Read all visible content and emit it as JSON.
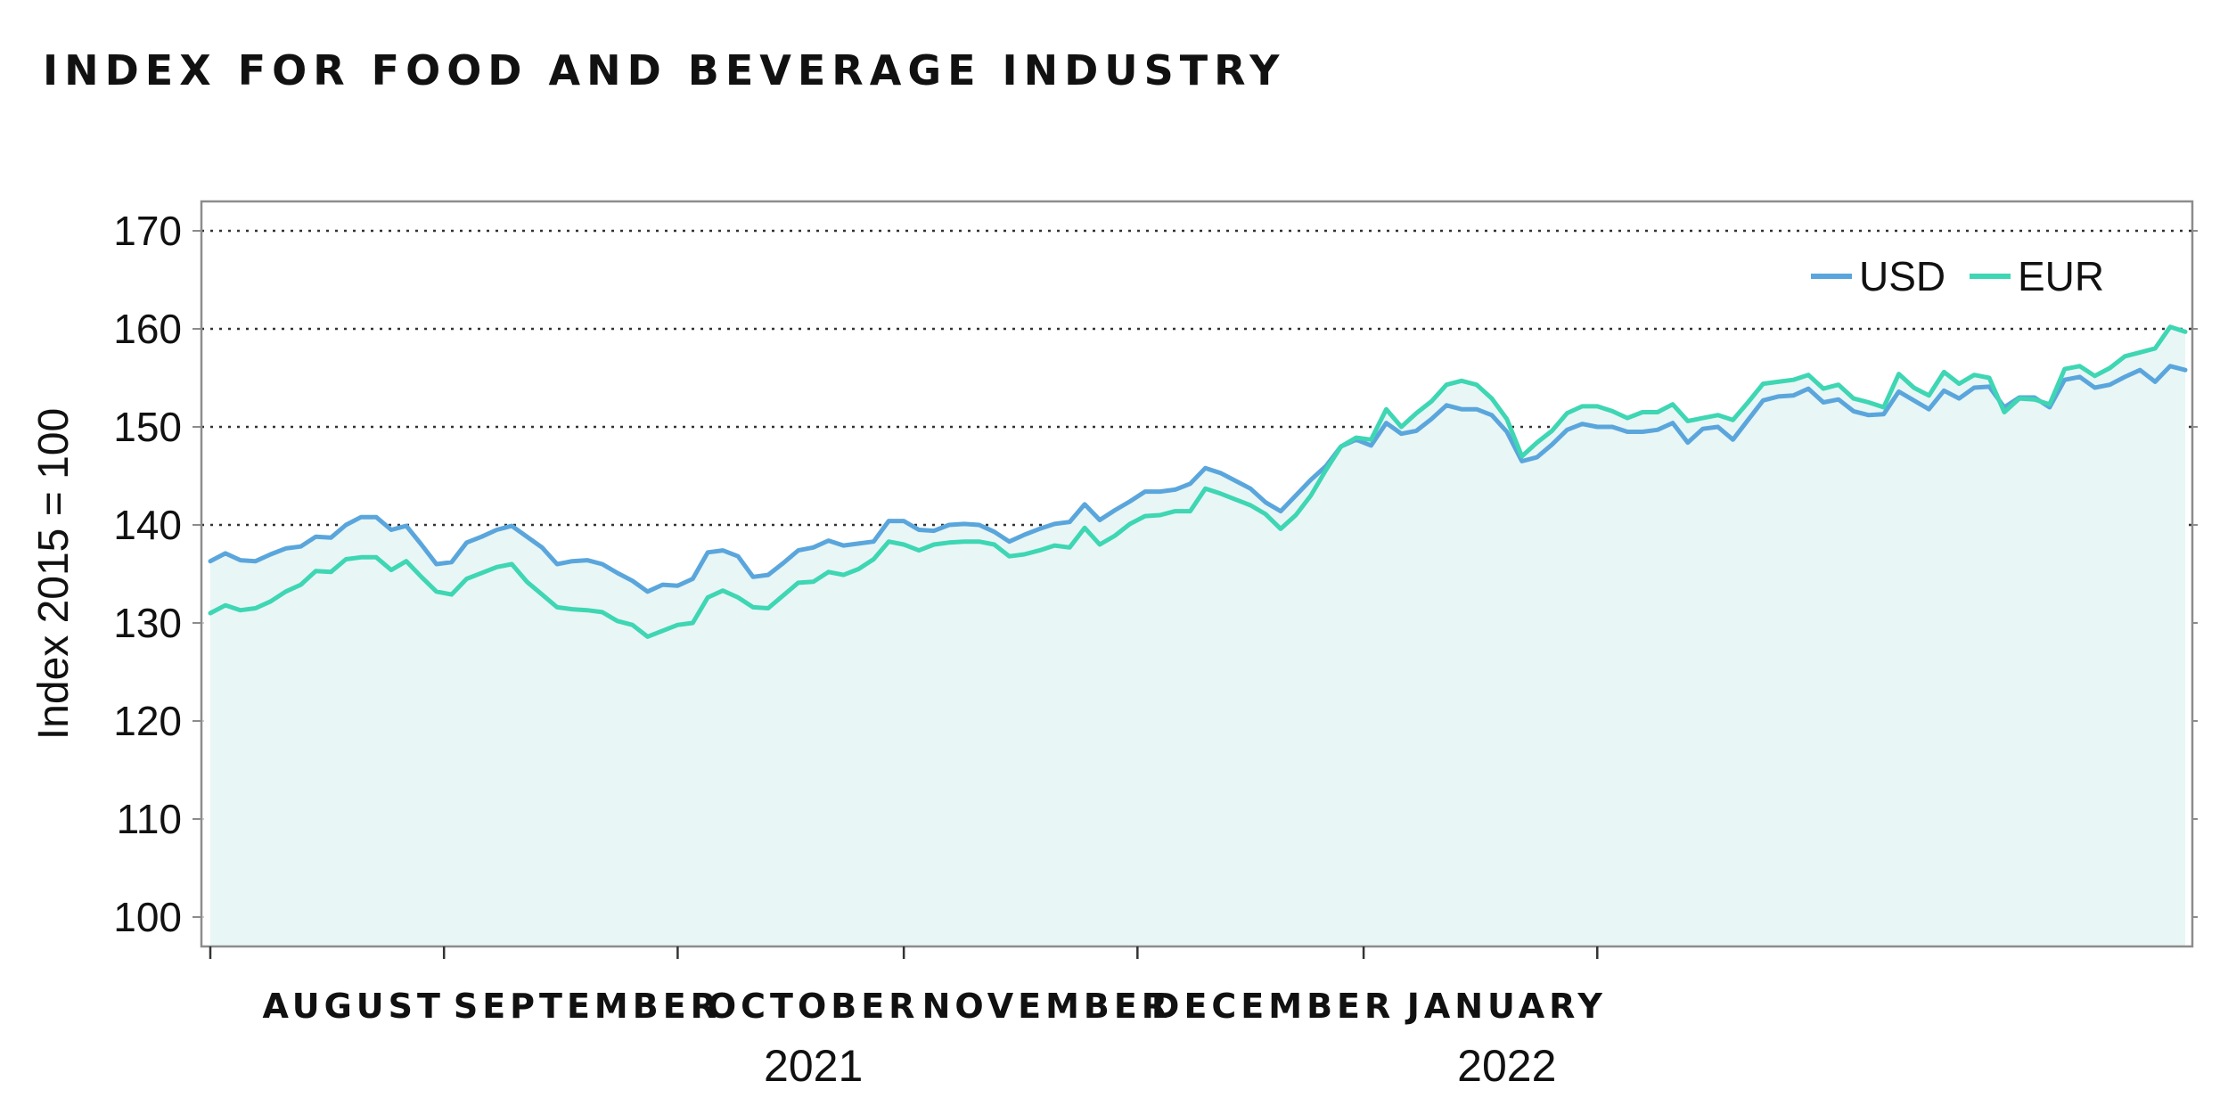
{
  "title": "INDEX FOR FOOD AND BEVERAGE INDUSTRY",
  "chart_data": {
    "type": "line",
    "title": "INDEX FOR FOOD AND BEVERAGE INDUSTRY",
    "xlabel": "",
    "ylabel": "Index 2015 = 100",
    "ylim": [
      97,
      173
    ],
    "yticks": [
      100,
      110,
      120,
      130,
      140,
      150,
      160,
      170
    ],
    "grid": "horizontal dotted",
    "legend_position": "top-right",
    "x_start": "2021-07-26",
    "x_end": "2022-01-26",
    "month_labels": [
      {
        "label": "AUGUST",
        "date": "2021-08-15"
      },
      {
        "label": "SEPTEMBER",
        "date": "2021-09-15"
      },
      {
        "label": "OCTOBER",
        "date": "2021-10-15"
      },
      {
        "label": "NOVEMBER",
        "date": "2021-11-15"
      },
      {
        "label": "DECEMBER",
        "date": "2021-12-15"
      },
      {
        "label": "JANUARY",
        "date": "2022-01-15"
      }
    ],
    "month_ticks": [
      "2021-07-27",
      "2021-08-27",
      "2021-09-27",
      "2021-10-27",
      "2021-11-27",
      "2021-12-27",
      "2022-01-27"
    ],
    "year_labels": [
      {
        "label": "2021",
        "date": "2021-10-15"
      },
      {
        "label": "2022",
        "date": "2022-01-15"
      }
    ],
    "series": [
      {
        "name": "USD",
        "color": "#5aa6dc",
        "points": [
          [
            "2021-07-27",
            136.3
          ],
          [
            "2021-07-29",
            137.1
          ],
          [
            "2021-07-31",
            136.4
          ],
          [
            "2021-08-02",
            136.3
          ],
          [
            "2021-08-04",
            137.0
          ],
          [
            "2021-08-06",
            137.6
          ],
          [
            "2021-08-08",
            137.8
          ],
          [
            "2021-08-10",
            138.8
          ],
          [
            "2021-08-12",
            138.7
          ],
          [
            "2021-08-14",
            140.0
          ],
          [
            "2021-08-16",
            140.8
          ],
          [
            "2021-08-18",
            140.8
          ],
          [
            "2021-08-20",
            139.5
          ],
          [
            "2021-08-22",
            139.9
          ],
          [
            "2021-08-24",
            138.0
          ],
          [
            "2021-08-26",
            136.0
          ],
          [
            "2021-08-28",
            136.2
          ],
          [
            "2021-08-30",
            138.2
          ],
          [
            "2021-09-01",
            138.8
          ],
          [
            "2021-09-03",
            139.5
          ],
          [
            "2021-09-05",
            139.9
          ],
          [
            "2021-09-07",
            138.8
          ],
          [
            "2021-09-09",
            137.7
          ],
          [
            "2021-09-11",
            136.0
          ],
          [
            "2021-09-13",
            136.3
          ],
          [
            "2021-09-15",
            136.4
          ],
          [
            "2021-09-17",
            136.0
          ],
          [
            "2021-09-19",
            135.1
          ],
          [
            "2021-09-21",
            134.3
          ],
          [
            "2021-09-23",
            133.2
          ],
          [
            "2021-09-25",
            133.9
          ],
          [
            "2021-09-27",
            133.8
          ],
          [
            "2021-09-29",
            134.5
          ],
          [
            "2021-10-01",
            137.2
          ],
          [
            "2021-10-03",
            137.4
          ],
          [
            "2021-10-05",
            136.8
          ],
          [
            "2021-10-07",
            134.7
          ],
          [
            "2021-10-09",
            134.9
          ],
          [
            "2021-10-11",
            136.1
          ],
          [
            "2021-10-13",
            137.4
          ],
          [
            "2021-10-15",
            137.7
          ],
          [
            "2021-10-17",
            138.4
          ],
          [
            "2021-10-19",
            137.9
          ],
          [
            "2021-10-21",
            138.1
          ],
          [
            "2021-10-23",
            138.3
          ],
          [
            "2021-10-25",
            140.4
          ],
          [
            "2021-10-27",
            140.4
          ],
          [
            "2021-10-29",
            139.5
          ],
          [
            "2021-10-31",
            139.4
          ],
          [
            "2021-11-02",
            140.0
          ],
          [
            "2021-11-04",
            140.1
          ],
          [
            "2021-11-06",
            140.0
          ],
          [
            "2021-11-08",
            139.3
          ],
          [
            "2021-11-10",
            138.3
          ],
          [
            "2021-11-12",
            139.0
          ],
          [
            "2021-11-14",
            139.6
          ],
          [
            "2021-11-16",
            140.1
          ],
          [
            "2021-11-18",
            140.3
          ],
          [
            "2021-11-20",
            142.1
          ],
          [
            "2021-11-22",
            140.5
          ],
          [
            "2021-11-24",
            141.5
          ],
          [
            "2021-11-26",
            142.4
          ],
          [
            "2021-11-28",
            143.4
          ],
          [
            "2021-11-30",
            143.4
          ],
          [
            "2021-12-02",
            143.6
          ],
          [
            "2021-12-04",
            144.2
          ],
          [
            "2021-12-06",
            145.8
          ],
          [
            "2021-12-08",
            145.3
          ],
          [
            "2021-12-10",
            144.5
          ],
          [
            "2021-12-12",
            143.7
          ],
          [
            "2021-12-14",
            142.3
          ],
          [
            "2021-12-16",
            141.4
          ],
          [
            "2021-12-18",
            143.0
          ],
          [
            "2021-12-20",
            144.6
          ],
          [
            "2021-12-22",
            146.0
          ],
          [
            "2021-12-24",
            148.0
          ],
          [
            "2021-12-26",
            148.7
          ],
          [
            "2021-12-28",
            148.1
          ],
          [
            "2021-12-30",
            150.4
          ],
          [
            "2022-01-01",
            149.3
          ],
          [
            "2022-01-03",
            149.6
          ],
          [
            "2022-01-05",
            150.8
          ],
          [
            "2022-01-07",
            152.2
          ],
          [
            "2022-01-09",
            151.8
          ],
          [
            "2022-01-11",
            151.8
          ],
          [
            "2022-01-13",
            151.2
          ],
          [
            "2022-01-15",
            149.5
          ],
          [
            "2022-01-17",
            146.5
          ],
          [
            "2022-01-19",
            146.9
          ],
          [
            "2022-01-21",
            148.2
          ],
          [
            "2022-01-23",
            149.7
          ],
          [
            "2022-01-25",
            150.3
          ],
          [
            "2022-01-27",
            150.0
          ],
          [
            "2022-01-29",
            150.0
          ],
          [
            "2022-01-31",
            149.5
          ],
          [
            "2022-02-02",
            149.5
          ],
          [
            "2022-02-04",
            149.7
          ],
          [
            "2022-02-06",
            150.4
          ],
          [
            "2022-02-08",
            148.4
          ],
          [
            "2022-02-10",
            149.8
          ],
          [
            "2022-02-12",
            150.0
          ],
          [
            "2022-02-14",
            148.7
          ],
          [
            "2022-02-16",
            150.7
          ],
          [
            "2022-02-18",
            152.7
          ],
          [
            "2022-02-20",
            153.1
          ],
          [
            "2022-02-22",
            153.2
          ],
          [
            "2022-02-24",
            153.9
          ],
          [
            "2022-02-26",
            152.5
          ],
          [
            "2022-02-28",
            152.8
          ],
          [
            "2022-03-02",
            151.6
          ],
          [
            "2022-03-04",
            151.2
          ],
          [
            "2022-03-06",
            151.3
          ],
          [
            "2022-03-08",
            153.6
          ],
          [
            "2022-03-10",
            152.7
          ],
          [
            "2022-03-12",
            151.8
          ],
          [
            "2022-03-14",
            153.7
          ],
          [
            "2022-03-16",
            152.9
          ],
          [
            "2022-03-18",
            154.0
          ],
          [
            "2022-03-20",
            154.1
          ],
          [
            "2022-03-22",
            152.0
          ],
          [
            "2022-03-24",
            153.0
          ],
          [
            "2022-03-26",
            153.0
          ],
          [
            "2022-03-28",
            152.0
          ],
          [
            "2022-03-30",
            154.8
          ],
          [
            "2022-04-01",
            155.1
          ],
          [
            "2022-04-03",
            154.0
          ],
          [
            "2022-04-05",
            154.3
          ],
          [
            "2022-04-07",
            155.1
          ],
          [
            "2022-04-09",
            155.8
          ],
          [
            "2022-04-11",
            154.6
          ],
          [
            "2022-04-13",
            156.2
          ],
          [
            "2022-04-15",
            155.8
          ]
        ]
      },
      {
        "name": "EUR",
        "color": "#3ed6b3",
        "points": [
          [
            "2021-07-27",
            131.0
          ],
          [
            "2021-07-29",
            131.8
          ],
          [
            "2021-07-31",
            131.3
          ],
          [
            "2021-08-02",
            131.5
          ],
          [
            "2021-08-04",
            132.2
          ],
          [
            "2021-08-06",
            133.2
          ],
          [
            "2021-08-08",
            133.9
          ],
          [
            "2021-08-10",
            135.3
          ],
          [
            "2021-08-12",
            135.2
          ],
          [
            "2021-08-14",
            136.5
          ],
          [
            "2021-08-16",
            136.7
          ],
          [
            "2021-08-18",
            136.7
          ],
          [
            "2021-08-20",
            135.4
          ],
          [
            "2021-08-22",
            136.3
          ],
          [
            "2021-08-24",
            134.7
          ],
          [
            "2021-08-26",
            133.2
          ],
          [
            "2021-08-28",
            132.9
          ],
          [
            "2021-08-30",
            134.5
          ],
          [
            "2021-09-01",
            135.1
          ],
          [
            "2021-09-03",
            135.7
          ],
          [
            "2021-09-05",
            136.0
          ],
          [
            "2021-09-07",
            134.2
          ],
          [
            "2021-09-09",
            132.9
          ],
          [
            "2021-09-11",
            131.6
          ],
          [
            "2021-09-13",
            131.4
          ],
          [
            "2021-09-15",
            131.3
          ],
          [
            "2021-09-17",
            131.1
          ],
          [
            "2021-09-19",
            130.2
          ],
          [
            "2021-09-21",
            129.8
          ],
          [
            "2021-09-23",
            128.6
          ],
          [
            "2021-09-25",
            129.2
          ],
          [
            "2021-09-27",
            129.8
          ],
          [
            "2021-09-29",
            130.0
          ],
          [
            "2021-10-01",
            132.6
          ],
          [
            "2021-10-03",
            133.3
          ],
          [
            "2021-10-05",
            132.6
          ],
          [
            "2021-10-07",
            131.6
          ],
          [
            "2021-10-09",
            131.5
          ],
          [
            "2021-10-11",
            132.8
          ],
          [
            "2021-10-13",
            134.1
          ],
          [
            "2021-10-15",
            134.2
          ],
          [
            "2021-10-17",
            135.2
          ],
          [
            "2021-10-19",
            134.9
          ],
          [
            "2021-10-21",
            135.5
          ],
          [
            "2021-10-23",
            136.5
          ],
          [
            "2021-10-25",
            138.3
          ],
          [
            "2021-10-27",
            138.0
          ],
          [
            "2021-10-29",
            137.4
          ],
          [
            "2021-10-31",
            138.0
          ],
          [
            "2021-11-02",
            138.2
          ],
          [
            "2021-11-04",
            138.3
          ],
          [
            "2021-11-06",
            138.3
          ],
          [
            "2021-11-08",
            138.0
          ],
          [
            "2021-11-10",
            136.8
          ],
          [
            "2021-11-12",
            137.0
          ],
          [
            "2021-11-14",
            137.4
          ],
          [
            "2021-11-16",
            137.9
          ],
          [
            "2021-11-18",
            137.7
          ],
          [
            "2021-11-20",
            139.7
          ],
          [
            "2021-11-22",
            138.0
          ],
          [
            "2021-11-24",
            138.9
          ],
          [
            "2021-11-26",
            140.1
          ],
          [
            "2021-11-28",
            140.9
          ],
          [
            "2021-11-30",
            141.0
          ],
          [
            "2021-12-02",
            141.4
          ],
          [
            "2021-12-04",
            141.4
          ],
          [
            "2021-12-06",
            143.7
          ],
          [
            "2021-12-08",
            143.2
          ],
          [
            "2021-12-10",
            142.6
          ],
          [
            "2021-12-12",
            142.0
          ],
          [
            "2021-12-14",
            141.1
          ],
          [
            "2021-12-16",
            139.6
          ],
          [
            "2021-12-18",
            141.0
          ],
          [
            "2021-12-20",
            143.0
          ],
          [
            "2021-12-22",
            145.6
          ],
          [
            "2021-12-24",
            148.0
          ],
          [
            "2021-12-26",
            148.9
          ],
          [
            "2021-12-28",
            148.7
          ],
          [
            "2021-12-30",
            151.8
          ],
          [
            "2022-01-01",
            150.0
          ],
          [
            "2022-01-03",
            151.4
          ],
          [
            "2022-01-05",
            152.6
          ],
          [
            "2022-01-07",
            154.3
          ],
          [
            "2022-01-09",
            154.7
          ],
          [
            "2022-01-11",
            154.3
          ],
          [
            "2022-01-13",
            152.9
          ],
          [
            "2022-01-15",
            150.8
          ],
          [
            "2022-01-17",
            147.0
          ],
          [
            "2022-01-19",
            148.4
          ],
          [
            "2022-01-21",
            149.6
          ],
          [
            "2022-01-23",
            151.4
          ],
          [
            "2022-01-25",
            152.1
          ],
          [
            "2022-01-27",
            152.1
          ],
          [
            "2022-01-29",
            151.6
          ],
          [
            "2022-01-31",
            150.9
          ],
          [
            "2022-02-02",
            151.5
          ],
          [
            "2022-02-04",
            151.5
          ],
          [
            "2022-02-06",
            152.3
          ],
          [
            "2022-02-08",
            150.6
          ],
          [
            "2022-02-10",
            150.9
          ],
          [
            "2022-02-12",
            151.2
          ],
          [
            "2022-02-14",
            150.7
          ],
          [
            "2022-02-16",
            152.5
          ],
          [
            "2022-02-18",
            154.4
          ],
          [
            "2022-02-20",
            154.6
          ],
          [
            "2022-02-22",
            154.8
          ],
          [
            "2022-02-24",
            155.3
          ],
          [
            "2022-02-26",
            153.9
          ],
          [
            "2022-02-28",
            154.3
          ],
          [
            "2022-03-02",
            152.9
          ],
          [
            "2022-03-04",
            152.5
          ],
          [
            "2022-03-06",
            152.0
          ],
          [
            "2022-03-08",
            155.4
          ],
          [
            "2022-03-10",
            154.0
          ],
          [
            "2022-03-12",
            153.2
          ],
          [
            "2022-03-14",
            155.6
          ],
          [
            "2022-03-16",
            154.4
          ],
          [
            "2022-03-18",
            155.3
          ],
          [
            "2022-03-20",
            155.0
          ],
          [
            "2022-03-22",
            151.5
          ],
          [
            "2022-03-24",
            152.9
          ],
          [
            "2022-03-26",
            152.8
          ],
          [
            "2022-03-28",
            152.3
          ],
          [
            "2022-03-30",
            155.9
          ],
          [
            "2022-04-01",
            156.2
          ],
          [
            "2022-04-03",
            155.2
          ],
          [
            "2022-04-05",
            156.0
          ],
          [
            "2022-04-07",
            157.2
          ],
          [
            "2022-04-09",
            157.6
          ],
          [
            "2022-04-11",
            158.0
          ],
          [
            "2022-04-13",
            160.2
          ],
          [
            "2022-04-15",
            159.7
          ]
        ]
      }
    ]
  }
}
